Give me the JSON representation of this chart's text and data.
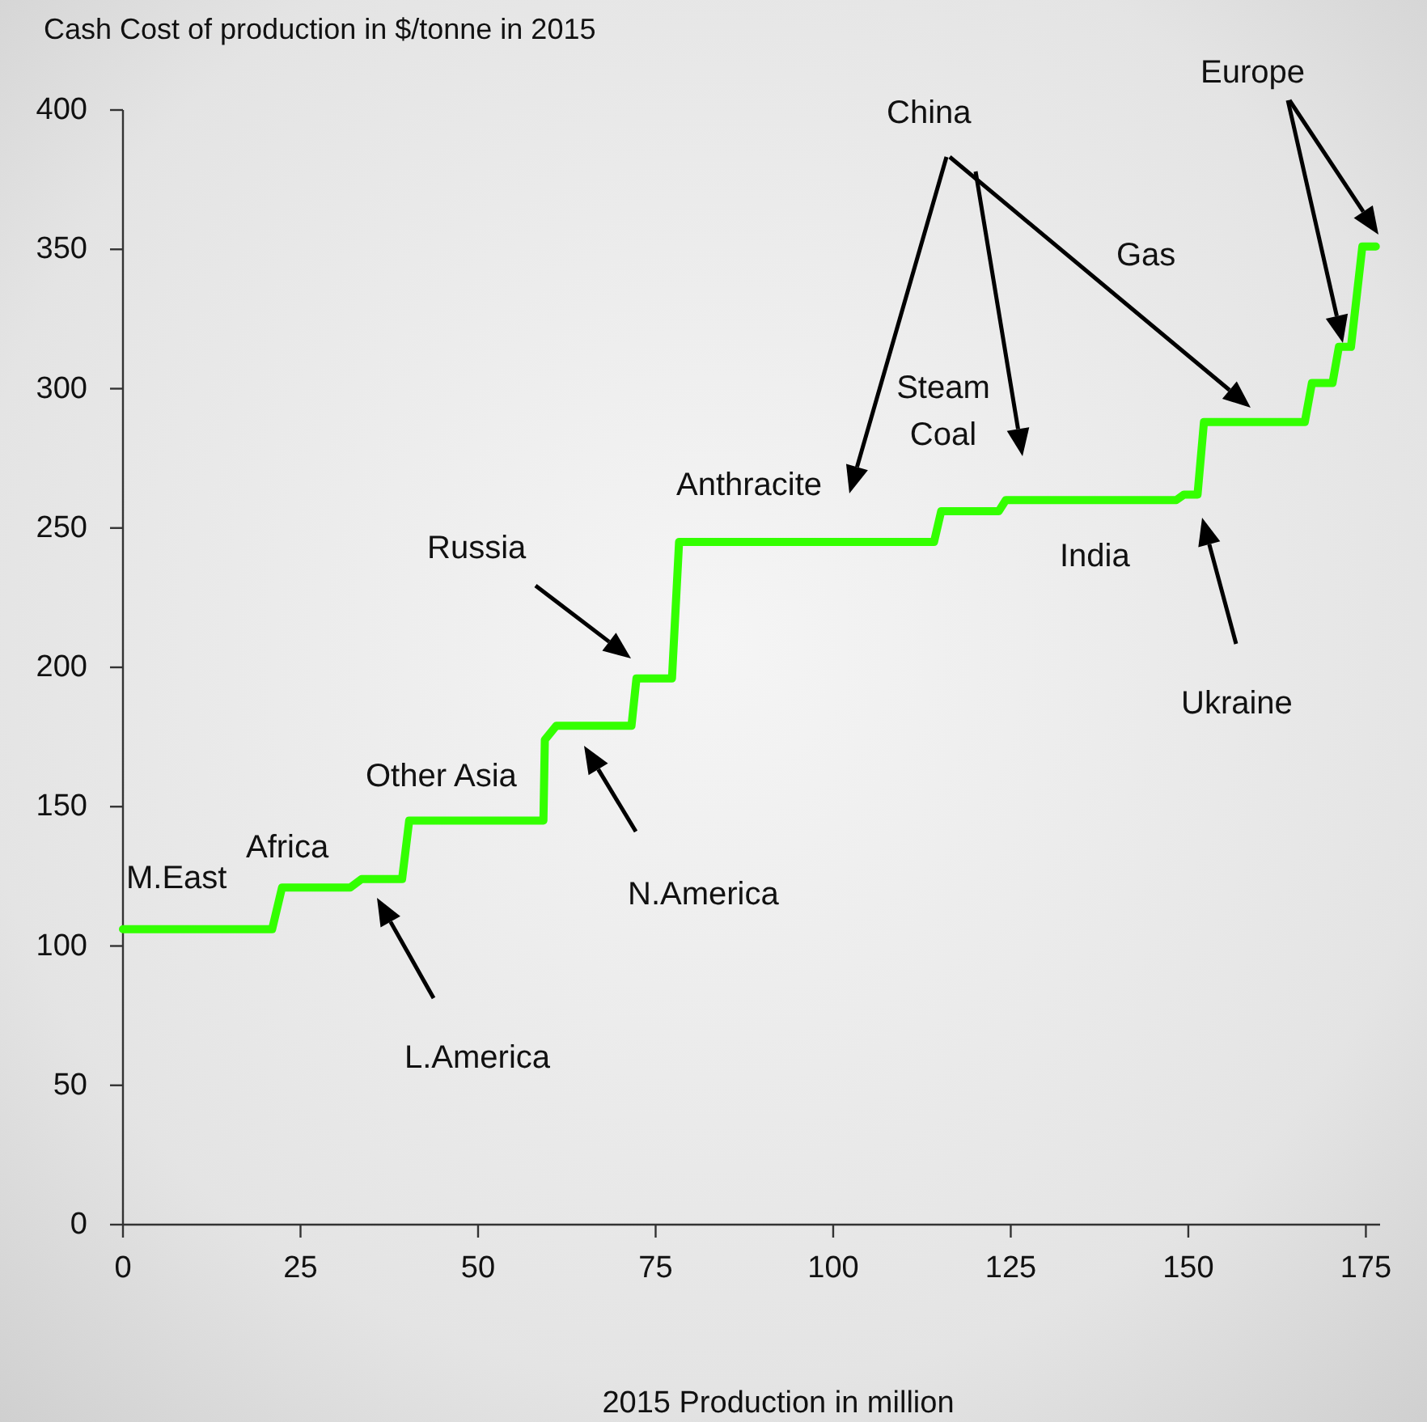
{
  "chart_data": {
    "type": "line",
    "title": "Cash Cost of production in $/tonne in 2015",
    "xlabel": "2015 Production in million",
    "xlim": [
      0,
      177
    ],
    "xticks": [
      0,
      25,
      50,
      75,
      100,
      125,
      150,
      175
    ],
    "ylim": [
      0,
      400
    ],
    "yticks": [
      0,
      50,
      100,
      150,
      200,
      250,
      300,
      350,
      400
    ],
    "color": "#33ff00",
    "x": [
      0,
      21,
      22.4,
      32,
      33.6,
      39.3,
      40.3,
      59.2,
      59.4,
      61,
      71.6,
      72.3,
      77.3,
      78.3,
      114.2,
      115.2,
      123.3,
      124.3,
      148.3,
      149.4,
      151.3,
      152.2,
      166.4,
      167.4,
      170.3,
      171.2,
      172.9,
      174.5,
      176.4
    ],
    "values": [
      106,
      106,
      121,
      121,
      124,
      124,
      145,
      145,
      174,
      179,
      179,
      196,
      196,
      245,
      245,
      256,
      256,
      260,
      260,
      262,
      262,
      288,
      288,
      302,
      302,
      315,
      315,
      351,
      351
    ],
    "annotations": [
      "M.East",
      "Africa",
      "L.America",
      "Other Asia",
      "Russia",
      "N.America",
      "Anthracite",
      "Steam Coal",
      "China",
      "Gas",
      "India",
      "Ukraine",
      "Europe"
    ]
  }
}
